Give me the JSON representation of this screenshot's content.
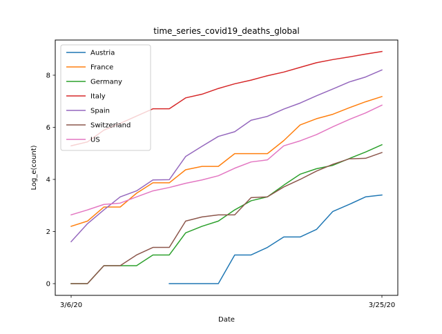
{
  "chart_data": {
    "type": "line",
    "title": "time_series_covid19_deaths_global",
    "xlabel": "Date",
    "ylabel": "Log_e(count)",
    "x": [
      "3/6/20",
      "3/7/20",
      "3/8/20",
      "3/9/20",
      "3/10/20",
      "3/11/20",
      "3/12/20",
      "3/13/20",
      "3/14/20",
      "3/15/20",
      "3/16/20",
      "3/17/20",
      "3/18/20",
      "3/19/20",
      "3/20/20",
      "3/21/20",
      "3/22/20",
      "3/23/20",
      "3/24/20",
      "3/25/20"
    ],
    "xticks": [
      "3/6/20",
      "3/25/20"
    ],
    "ylim": [
      -0.45,
      9.35
    ],
    "yticks": [
      0,
      2,
      4,
      6,
      8
    ],
    "grid": false,
    "legend_position": "top-left",
    "series": [
      {
        "name": "Austria",
        "color": "#1f77b4",
        "values": [
          null,
          null,
          null,
          null,
          null,
          null,
          0,
          0,
          0,
          0,
          1.1,
          1.1,
          1.39,
          1.79,
          1.79,
          2.08,
          2.77,
          3.04,
          3.33,
          3.4
        ]
      },
      {
        "name": "France",
        "color": "#ff7f0e",
        "values": [
          2.2,
          2.4,
          2.94,
          2.94,
          3.47,
          3.87,
          3.87,
          4.37,
          4.5,
          4.5,
          4.99,
          4.99,
          4.99,
          5.49,
          6.09,
          6.33,
          6.5,
          6.75,
          6.98,
          7.18
        ]
      },
      {
        "name": "Germany",
        "color": "#2ca02c",
        "values": [
          0,
          0,
          0.69,
          0.69,
          0.69,
          1.1,
          1.1,
          1.95,
          2.2,
          2.4,
          2.83,
          3.18,
          3.33,
          3.78,
          4.2,
          4.41,
          4.54,
          4.8,
          5.05,
          5.33
        ]
      },
      {
        "name": "Italy",
        "color": "#d62728",
        "values": [
          5.29,
          5.44,
          5.89,
          6.15,
          6.43,
          6.71,
          6.71,
          7.13,
          7.27,
          7.49,
          7.67,
          7.81,
          7.98,
          8.12,
          8.3,
          8.48,
          8.6,
          8.7,
          8.81,
          8.91
        ]
      },
      {
        "name": "Spain",
        "color": "#9467bd",
        "values": [
          1.61,
          2.3,
          2.83,
          3.33,
          3.56,
          3.98,
          3.99,
          4.88,
          5.27,
          5.65,
          5.83,
          6.27,
          6.42,
          6.7,
          6.93,
          7.21,
          7.47,
          7.74,
          7.93,
          8.2
        ]
      },
      {
        "name": "Switzerland",
        "color": "#8c564b",
        "values": [
          0,
          0,
          0.69,
          0.69,
          1.1,
          1.39,
          1.39,
          2.4,
          2.56,
          2.64,
          2.64,
          3.3,
          3.33,
          3.71,
          4.0,
          4.32,
          4.58,
          4.79,
          4.81,
          5.03
        ]
      },
      {
        "name": "US",
        "color": "#e377c2",
        "values": [
          2.64,
          2.83,
          3.04,
          3.09,
          3.33,
          3.56,
          3.69,
          3.85,
          3.98,
          4.14,
          4.43,
          4.67,
          4.75,
          5.29,
          5.48,
          5.72,
          6.02,
          6.3,
          6.55,
          6.85
        ]
      }
    ]
  }
}
